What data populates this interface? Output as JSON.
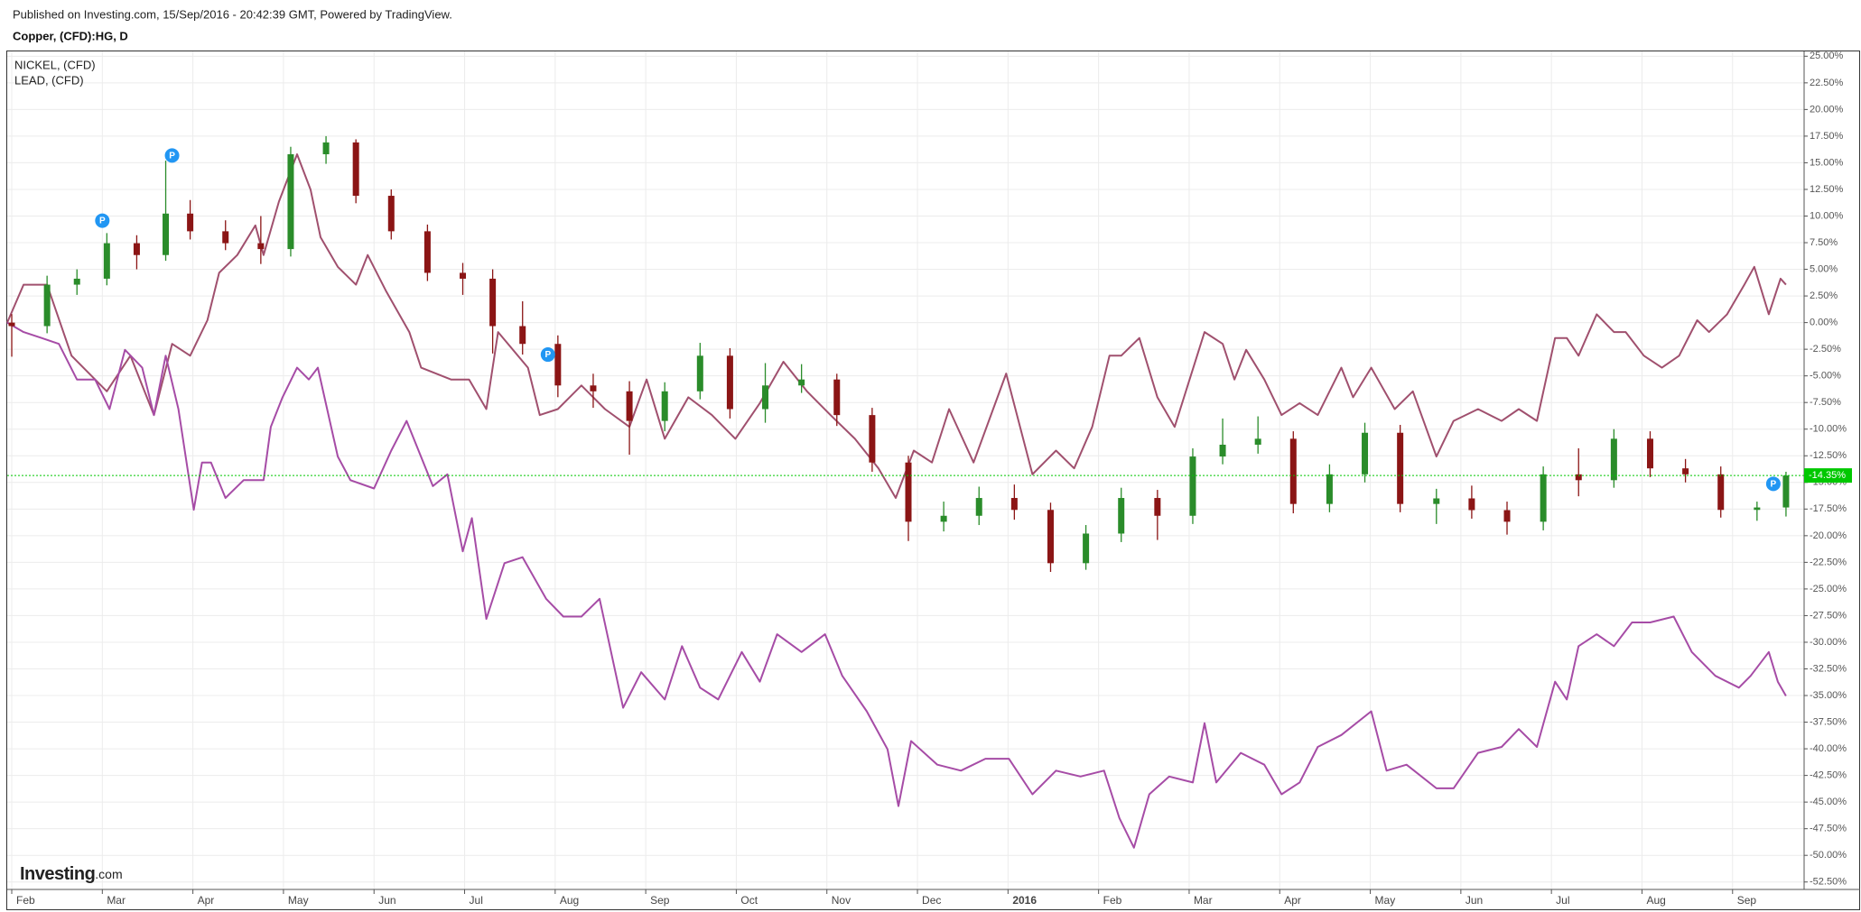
{
  "chart_data": {
    "type": "candlestick",
    "title": "Published on Investing.com, 15/Sep/2016 - 20:42:39 GMT, Powered by TradingView.",
    "subtitle": "Copper, (CFD):HG, D",
    "logo": {
      "name": "Investing",
      "suffix": ".com"
    },
    "xlim": [
      -0.05,
      19.79
    ],
    "xticks": [
      {
        "value": 0,
        "label": "Feb"
      },
      {
        "value": 1,
        "label": "Mar"
      },
      {
        "value": 2,
        "label": "Apr"
      },
      {
        "value": 3,
        "label": "May"
      },
      {
        "value": 4,
        "label": "Jun"
      },
      {
        "value": 5,
        "label": "Jul"
      },
      {
        "value": 6,
        "label": "Aug"
      },
      {
        "value": 7,
        "label": "Sep"
      },
      {
        "value": 8,
        "label": "Oct"
      },
      {
        "value": 9,
        "label": "Nov"
      },
      {
        "value": 10,
        "label": "Dec"
      },
      {
        "value": 11,
        "label": "2016"
      },
      {
        "value": 12,
        "label": "Feb"
      },
      {
        "value": 13,
        "label": "Mar"
      },
      {
        "value": 14,
        "label": "Apr"
      },
      {
        "value": 15,
        "label": "May"
      },
      {
        "value": 16,
        "label": "Jun"
      },
      {
        "value": 17,
        "label": "Jul"
      },
      {
        "value": 18,
        "label": "Aug"
      },
      {
        "value": 19,
        "label": "Sep"
      }
    ],
    "ylim": [
      -53.2,
      25.45
    ],
    "yticks": [
      {
        "value": 25,
        "label": "25.00%"
      },
      {
        "value": 22.5,
        "label": "22.50%"
      },
      {
        "value": 20,
        "label": "20.00%"
      },
      {
        "value": 17.5,
        "label": "17.50%"
      },
      {
        "value": 15,
        "label": "15.00%"
      },
      {
        "value": 12.5,
        "label": "12.50%"
      },
      {
        "value": 10,
        "label": "10.00%"
      },
      {
        "value": 7.5,
        "label": "7.50%"
      },
      {
        "value": 5,
        "label": "5.00%"
      },
      {
        "value": 2.5,
        "label": "2.50%"
      },
      {
        "value": 0,
        "label": "0.00%"
      },
      {
        "value": -2.5,
        "label": "-2.50%"
      },
      {
        "value": -5,
        "label": "-5.00%"
      },
      {
        "value": -7.5,
        "label": "-7.50%"
      },
      {
        "value": -10,
        "label": "-10.00%"
      },
      {
        "value": -12.5,
        "label": "-12.50%"
      },
      {
        "value": -15,
        "label": "-15.00%"
      },
      {
        "value": -17.5,
        "label": "-17.50%"
      },
      {
        "value": -20,
        "label": "-20.00%"
      },
      {
        "value": -22.5,
        "label": "-22.50%"
      },
      {
        "value": -25,
        "label": "-25.00%"
      },
      {
        "value": -27.5,
        "label": "-27.50%"
      },
      {
        "value": -30,
        "label": "-30.00%"
      },
      {
        "value": -32.5,
        "label": "-32.50%"
      },
      {
        "value": -35,
        "label": "-35.00%"
      },
      {
        "value": -37.5,
        "label": "-37.50%"
      },
      {
        "value": -40,
        "label": "-40.00%"
      },
      {
        "value": -42.5,
        "label": "-42.50%"
      },
      {
        "value": -45,
        "label": "-45.00%"
      },
      {
        "value": -47.5,
        "label": "-47.50%"
      },
      {
        "value": -50,
        "label": "-50.00%"
      },
      {
        "value": -52.5,
        "label": "-52.50%"
      }
    ],
    "grid": true,
    "candles": {
      "up_color": "#2a8c2a",
      "down_color": "#8b1515",
      "x": [
        0.0,
        0.39,
        0.72,
        1.05,
        1.38,
        1.7,
        1.97,
        2.36,
        2.75,
        3.08,
        3.47,
        3.8,
        4.19,
        4.59,
        4.98,
        5.31,
        5.64,
        6.03,
        6.42,
        6.82,
        7.21,
        7.6,
        7.93,
        8.32,
        8.72,
        9.11,
        9.5,
        9.9,
        10.29,
        10.68,
        11.07,
        11.47,
        11.86,
        12.25,
        12.65,
        13.04,
        13.37,
        13.76,
        14.15,
        14.55,
        14.94,
        15.33,
        15.73,
        16.12,
        16.51,
        16.91,
        17.3,
        17.69,
        18.09,
        18.48,
        18.87,
        19.27,
        19.59
      ],
      "open": [
        0,
        -0.33,
        3.56,
        4.12,
        7.45,
        6.34,
        10.23,
        8.57,
        7.45,
        6.9,
        15.8,
        16.91,
        11.9,
        8.57,
        4.67,
        4.12,
        -0.33,
        -2.0,
        -5.9,
        -6.45,
        -9.23,
        -6.45,
        -3.11,
        -8.12,
        -5.9,
        -5.34,
        -8.68,
        -13.13,
        -18.69,
        -18.13,
        -16.46,
        -17.58,
        -22.58,
        -19.8,
        -16.46,
        -18.13,
        -12.57,
        -11.46,
        -10.9,
        -17.02,
        -14.24,
        -10.34,
        -17.02,
        -16.5,
        -17.6,
        -18.69,
        -14.24,
        -14.79,
        -10.9,
        -13.68,
        -14.24,
        -17.58,
        -17.35
      ],
      "high": [
        0.8,
        4.4,
        5.0,
        8.4,
        8.2,
        15.2,
        11.5,
        9.6,
        10.0,
        16.5,
        17.5,
        17.2,
        12.5,
        9.2,
        5.6,
        5.0,
        2.0,
        -1.2,
        -4.8,
        -5.5,
        -5.6,
        -1.9,
        -2.4,
        -3.8,
        -3.9,
        -4.8,
        -8.0,
        -12.5,
        -16.8,
        -15.4,
        -15.2,
        -16.9,
        -19.0,
        -15.5,
        -15.7,
        -11.8,
        -9.0,
        -8.8,
        -10.2,
        -13.3,
        -9.4,
        -9.6,
        -15.6,
        -15.3,
        -16.8,
        -13.5,
        -11.8,
        -10.0,
        -10.2,
        -12.8,
        -13.5,
        -16.8,
        -14.0
      ],
      "low": [
        -3.2,
        -1.0,
        2.6,
        3.5,
        5.0,
        5.8,
        7.8,
        6.8,
        5.5,
        6.2,
        14.9,
        11.2,
        7.8,
        3.9,
        2.6,
        -2.9,
        -3.0,
        -7.0,
        -8.0,
        -12.4,
        -10.2,
        -7.2,
        -9.0,
        -9.4,
        -6.6,
        -9.7,
        -14.0,
        -20.5,
        -19.6,
        -19.0,
        -18.5,
        -23.4,
        -23.2,
        -20.6,
        -20.4,
        -18.9,
        -13.3,
        -12.3,
        -17.9,
        -17.8,
        -15.0,
        -17.8,
        -18.9,
        -18.4,
        -19.9,
        -19.5,
        -16.3,
        -15.5,
        -14.5,
        -15.0,
        -18.3,
        -18.6,
        -18.2
      ],
      "close": [
        -0.33,
        3.56,
        4.12,
        7.45,
        6.34,
        10.23,
        8.57,
        7.45,
        6.9,
        15.8,
        16.91,
        11.9,
        8.57,
        4.67,
        4.12,
        -0.33,
        -2.0,
        -5.9,
        -6.45,
        -9.23,
        -6.45,
        -3.11,
        -8.12,
        -5.9,
        -5.34,
        -8.68,
        -13.13,
        -18.69,
        -18.13,
        -16.46,
        -17.58,
        -22.58,
        -19.8,
        -16.46,
        -18.13,
        -12.57,
        -11.46,
        -10.9,
        -17.02,
        -14.24,
        -10.34,
        -17.02,
        -16.5,
        -17.6,
        -18.69,
        -14.24,
        -14.79,
        -10.9,
        -13.68,
        -14.24,
        -17.58,
        -17.35,
        -14.35
      ],
      "last_label": "-14.35%",
      "last_color": "#00c800"
    },
    "series": [
      {
        "name": "NICKEL,  (CFD)",
        "color": "#a0506e",
        "x": [
          -0.05,
          0.13,
          0.39,
          0.66,
          1.05,
          1.31,
          1.57,
          1.77,
          1.97,
          2.16,
          2.29,
          2.49,
          2.69,
          2.78,
          2.95,
          3.15,
          3.3,
          3.41,
          3.6,
          3.8,
          3.93,
          4.13,
          4.39,
          4.52,
          4.85,
          5.05,
          5.24,
          5.37,
          5.7,
          5.83,
          6.03,
          6.29,
          6.55,
          6.82,
          7.01,
          7.21,
          7.47,
          7.73,
          7.99,
          8.26,
          8.52,
          8.78,
          9.04,
          9.31,
          9.57,
          9.76,
          9.96,
          10.16,
          10.35,
          10.62,
          10.98,
          11.27,
          11.53,
          11.73,
          11.93,
          12.12,
          12.25,
          12.45,
          12.65,
          12.84,
          13.17,
          13.37,
          13.5,
          13.63,
          13.83,
          14.02,
          14.22,
          14.42,
          14.68,
          14.81,
          15.01,
          15.27,
          15.47,
          15.73,
          15.92,
          16.19,
          16.45,
          16.64,
          16.84,
          17.04,
          17.17,
          17.3,
          17.5,
          17.69,
          17.82,
          18.02,
          18.22,
          18.41,
          18.61,
          18.74,
          18.94,
          19.13,
          19.24,
          19.4,
          19.53,
          19.59
        ],
        "values": [
          0.0,
          3.56,
          3.56,
          -3.11,
          -6.45,
          -3.11,
          -8.68,
          -2.0,
          -3.11,
          0.22,
          4.67,
          6.34,
          9.12,
          6.34,
          11.35,
          15.8,
          12.46,
          8.01,
          5.23,
          3.56,
          6.34,
          3.0,
          -0.89,
          -4.23,
          -5.34,
          -5.34,
          -8.12,
          -0.89,
          -4.23,
          -8.68,
          -8.12,
          -5.9,
          -8.12,
          -9.79,
          -5.34,
          -10.9,
          -7.01,
          -8.68,
          -10.9,
          -7.56,
          -3.67,
          -6.45,
          -8.68,
          -10.9,
          -13.68,
          -16.46,
          -12.01,
          -13.13,
          -8.12,
          -13.13,
          -4.78,
          -14.24,
          -12.01,
          -13.68,
          -9.79,
          -3.11,
          -3.11,
          -1.45,
          -7.01,
          -9.79,
          -0.89,
          -2.0,
          -5.34,
          -2.56,
          -5.34,
          -8.68,
          -7.56,
          -8.68,
          -4.23,
          -7.01,
          -4.23,
          -8.12,
          -6.45,
          -12.57,
          -9.23,
          -8.12,
          -9.23,
          -8.12,
          -9.23,
          -1.45,
          -1.45,
          -3.11,
          0.78,
          -0.89,
          -0.89,
          -3.11,
          -4.23,
          -3.11,
          0.22,
          -0.89,
          0.78,
          3.56,
          5.23,
          0.78,
          4.12,
          3.56
        ]
      },
      {
        "name": "LEAD,  (CFD)",
        "color": "#a64ca6",
        "x": [
          -0.05,
          0.13,
          0.33,
          0.52,
          0.72,
          0.92,
          1.08,
          1.25,
          1.44,
          1.57,
          1.7,
          1.84,
          2.01,
          2.1,
          2.2,
          2.36,
          2.56,
          2.78,
          2.86,
          2.99,
          3.15,
          3.28,
          3.38,
          3.6,
          3.74,
          4.0,
          4.19,
          4.36,
          4.65,
          4.81,
          4.98,
          5.08,
          5.24,
          5.44,
          5.64,
          5.9,
          6.09,
          6.29,
          6.49,
          6.75,
          6.95,
          7.21,
          7.4,
          7.6,
          7.8,
          8.06,
          8.26,
          8.45,
          8.72,
          8.98,
          9.17,
          9.44,
          9.67,
          9.79,
          9.93,
          10.22,
          10.48,
          10.75,
          11.01,
          11.27,
          11.53,
          11.8,
          12.06,
          12.23,
          12.39,
          12.56,
          12.78,
          13.04,
          13.17,
          13.3,
          13.57,
          13.83,
          14.02,
          14.22,
          14.42,
          14.68,
          15.01,
          15.18,
          15.4,
          15.73,
          15.92,
          16.19,
          16.45,
          16.64,
          16.84,
          17.04,
          17.17,
          17.3,
          17.5,
          17.69,
          17.89,
          18.09,
          18.35,
          18.55,
          18.81,
          19.07,
          19.2,
          19.4,
          19.5,
          19.59
        ],
        "values": [
          0.0,
          -0.89,
          -1.45,
          -2.0,
          -5.34,
          -5.34,
          -8.12,
          -2.56,
          -4.23,
          -8.68,
          -3.11,
          -8.12,
          -17.57,
          -13.13,
          -13.13,
          -16.46,
          -14.79,
          -14.79,
          -9.79,
          -7.01,
          -4.23,
          -5.34,
          -4.23,
          -12.57,
          -14.79,
          -15.57,
          -12.01,
          -9.23,
          -15.35,
          -14.24,
          -21.47,
          -18.35,
          -27.81,
          -22.58,
          -22.02,
          -25.92,
          -27.59,
          -27.59,
          -25.92,
          -36.15,
          -32.81,
          -35.37,
          -30.37,
          -34.26,
          -35.37,
          -30.92,
          -33.7,
          -29.25,
          -30.92,
          -29.25,
          -33.15,
          -36.48,
          -40.04,
          -45.38,
          -39.27,
          -41.49,
          -42.05,
          -40.93,
          -40.93,
          -44.27,
          -42.05,
          -42.6,
          -42.05,
          -46.5,
          -49.28,
          -44.27,
          -42.6,
          -43.16,
          -37.6,
          -43.16,
          -40.38,
          -41.49,
          -44.27,
          -43.16,
          -39.82,
          -38.71,
          -36.48,
          -42.05,
          -41.49,
          -43.71,
          -43.71,
          -40.38,
          -39.82,
          -38.15,
          -39.82,
          -33.7,
          -35.37,
          -30.37,
          -29.25,
          -30.37,
          -28.14,
          -28.14,
          -27.59,
          -30.92,
          -33.15,
          -34.26,
          -33.15,
          -30.92,
          -33.7,
          -35.04
        ]
      }
    ],
    "markers": {
      "label": "P",
      "color": "#2196f3",
      "x": [
        1.0,
        1.77,
        5.92,
        19.45
      ],
      "values": [
        9.57,
        15.68,
        -3.0,
        -15.13
      ]
    }
  }
}
